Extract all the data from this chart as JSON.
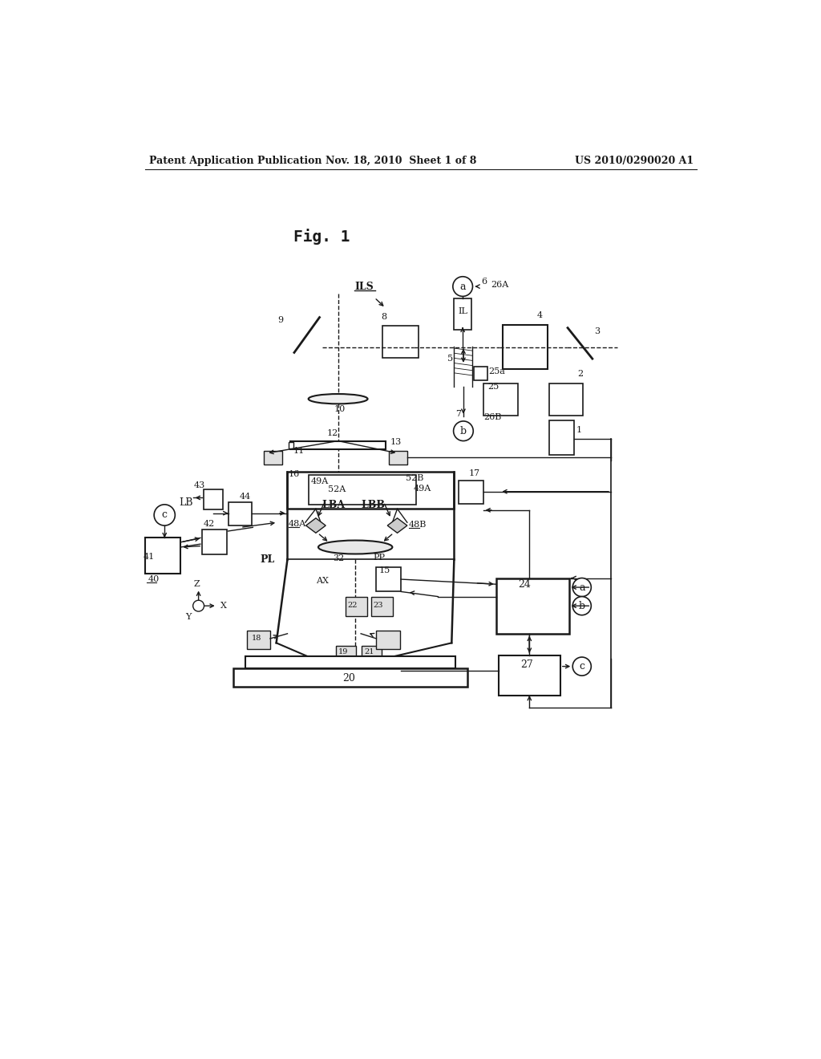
{
  "header_left": "Patent Application Publication",
  "header_center": "Nov. 18, 2010  Sheet 1 of 8",
  "header_right": "US 2010/0290020 A1",
  "title": "Fig. 1",
  "bg_color": "#ffffff",
  "fg_color": "#1a1a1a"
}
